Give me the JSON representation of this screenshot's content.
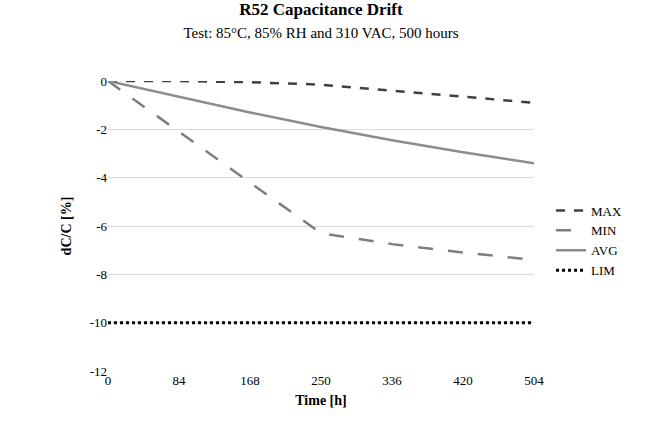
{
  "chart_data": {
    "type": "line",
    "title": "R52 Capacitance Drift",
    "subtitle": "Test: 85°C, 85% RH and 310 VAC, 500 hours",
    "x_label": "Time [h]",
    "y_label": "dC/C [%]",
    "categories": [
      0,
      84,
      168,
      250,
      336,
      420,
      504
    ],
    "series": [
      {
        "name": "MAX",
        "color": "#404040",
        "line_style": "dash",
        "values": [
          0,
          0,
          -0.05,
          -0.15,
          -0.4,
          -0.65,
          -0.9
        ]
      },
      {
        "name": "MIN",
        "color": "#7f7f7f",
        "line_style": "longdash",
        "values": [
          0,
          -2.1,
          -4.2,
          -6.3,
          -6.75,
          -7.1,
          -7.4
        ]
      },
      {
        "name": "AVG",
        "color": "#8c8c8c",
        "line_style": "solid",
        "values": [
          0,
          -0.65,
          -1.3,
          -1.9,
          -2.45,
          -2.95,
          -3.4
        ]
      },
      {
        "name": "LIM",
        "color": "#000000",
        "line_style": "dot",
        "values": [
          -10,
          -10,
          -10,
          -10,
          -10,
          -10,
          -10
        ]
      }
    ],
    "ylim": [
      -12,
      0
    ],
    "yticks": [
      -12,
      -10,
      -8,
      -6,
      -4,
      -2,
      0
    ],
    "grid": true,
    "legend": "right"
  }
}
